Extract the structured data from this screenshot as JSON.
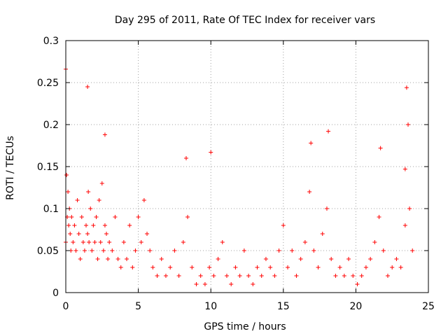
{
  "chart_data": {
    "type": "scatter",
    "title": "Day 295 of 2011, Rate Of TEC Index for receiver vars",
    "xlabel": "GPS time / hours",
    "ylabel": "ROTI / TECUs",
    "xlim": [
      0,
      25
    ],
    "ylim": [
      0,
      0.3
    ],
    "xticks": [
      0,
      5,
      10,
      15,
      20,
      25
    ],
    "yticks": [
      0,
      0.05,
      0.1,
      0.15,
      0.2,
      0.25,
      0.3
    ],
    "xtick_labels": [
      "0",
      "5",
      "10",
      "15",
      "20",
      "25"
    ],
    "ytick_labels": [
      "0",
      "0.05",
      "0.1",
      "0.15",
      "0.2",
      "0.25",
      "0.3"
    ],
    "grid": true,
    "marker": "+",
    "color": "#ff0000",
    "series": [
      {
        "name": "vars",
        "x": [
          0.0,
          0.05,
          0.1,
          0.15,
          0.2,
          0.25,
          0.3,
          0.35,
          0.4,
          0.5,
          0.6,
          0.7,
          0.8,
          0.9,
          1.0,
          1.1,
          1.2,
          1.3,
          1.4,
          1.5,
          1.55,
          1.6,
          1.7,
          1.8,
          1.9,
          2.0,
          2.1,
          2.2,
          2.3,
          2.4,
          2.5,
          2.6,
          2.7,
          2.8,
          2.9,
          3.0,
          3.2,
          3.4,
          3.6,
          3.8,
          4.0,
          4.2,
          4.4,
          4.6,
          4.8,
          5.0,
          5.2,
          5.4,
          5.6,
          5.8,
          6.0,
          6.3,
          6.6,
          6.9,
          7.2,
          7.5,
          7.8,
          8.1,
          8.4,
          8.7,
          9.0,
          9.3,
          9.6,
          9.9,
          10.2,
          10.5,
          10.8,
          11.1,
          11.4,
          11.7,
          12.0,
          12.3,
          12.6,
          12.9,
          13.2,
          13.5,
          13.8,
          14.1,
          14.4,
          14.7,
          15.0,
          15.3,
          15.6,
          15.9,
          16.2,
          16.5,
          16.8,
          17.1,
          17.4,
          17.7,
          18.0,
          18.3,
          18.6,
          18.9,
          19.2,
          19.5,
          19.8,
          20.1,
          20.4,
          20.7,
          21.0,
          21.3,
          21.6,
          21.9,
          22.2,
          22.5,
          22.8,
          23.1,
          23.4,
          23.7,
          23.9,
          0.0,
          1.5,
          2.7,
          8.3,
          10.0,
          16.9,
          18.1,
          21.7,
          23.5,
          23.6,
          23.4
        ],
        "y": [
          0.06,
          0.14,
          0.09,
          0.12,
          0.08,
          0.1,
          0.07,
          0.05,
          0.09,
          0.06,
          0.08,
          0.05,
          0.11,
          0.07,
          0.04,
          0.09,
          0.06,
          0.05,
          0.08,
          0.07,
          0.12,
          0.06,
          0.1,
          0.05,
          0.08,
          0.06,
          0.09,
          0.04,
          0.11,
          0.06,
          0.13,
          0.05,
          0.08,
          0.07,
          0.04,
          0.06,
          0.05,
          0.09,
          0.04,
          0.03,
          0.06,
          0.04,
          0.08,
          0.03,
          0.05,
          0.09,
          0.06,
          0.11,
          0.07,
          0.05,
          0.03,
          0.02,
          0.04,
          0.02,
          0.03,
          0.05,
          0.02,
          0.06,
          0.09,
          0.03,
          0.01,
          0.02,
          0.01,
          0.03,
          0.02,
          0.04,
          0.06,
          0.02,
          0.01,
          0.03,
          0.02,
          0.05,
          0.02,
          0.01,
          0.03,
          0.02,
          0.04,
          0.03,
          0.02,
          0.05,
          0.08,
          0.03,
          0.05,
          0.02,
          0.04,
          0.06,
          0.12,
          0.05,
          0.03,
          0.07,
          0.1,
          0.04,
          0.02,
          0.03,
          0.02,
          0.04,
          0.02,
          0.01,
          0.02,
          0.03,
          0.04,
          0.06,
          0.09,
          0.05,
          0.02,
          0.03,
          0.04,
          0.03,
          0.08,
          0.1,
          0.05,
          0.266,
          0.245,
          0.188,
          0.16,
          0.167,
          0.178,
          0.192,
          0.172,
          0.244,
          0.2,
          0.147
        ]
      }
    ]
  }
}
